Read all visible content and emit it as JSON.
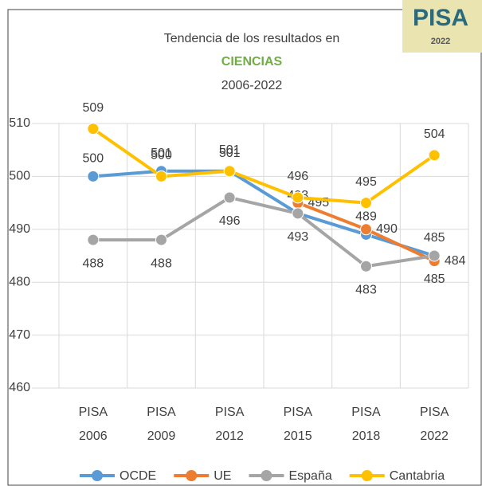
{
  "chart_data": {
    "type": "line",
    "title": "Tendencia de los resultados en",
    "subject": "CIENCIAS",
    "subtitle": "2006-2022",
    "logo": {
      "text": "PISA",
      "year": "2022"
    },
    "categories": [
      "PISA 2006",
      "PISA 2009",
      "PISA 2012",
      "PISA 2015",
      "PISA 2018",
      "PISA 2022"
    ],
    "series": [
      {
        "name": "OCDE",
        "color": "#5b9bd5",
        "values": [
          500,
          501,
          501,
          493,
          489,
          485
        ]
      },
      {
        "name": "UE",
        "color": "#ed7d31",
        "values": [
          null,
          null,
          null,
          495,
          490,
          484
        ]
      },
      {
        "name": "España",
        "color": "#a5a5a5",
        "values": [
          488,
          488,
          496,
          493,
          483,
          485
        ]
      },
      {
        "name": "Cantabria",
        "color": "#ffc000",
        "values": [
          509,
          500,
          501,
          496,
          495,
          504
        ]
      }
    ],
    "ylim": [
      460,
      510
    ],
    "yticks": [
      460,
      470,
      480,
      490,
      500,
      510
    ],
    "grid": true,
    "legend": "bottom"
  }
}
